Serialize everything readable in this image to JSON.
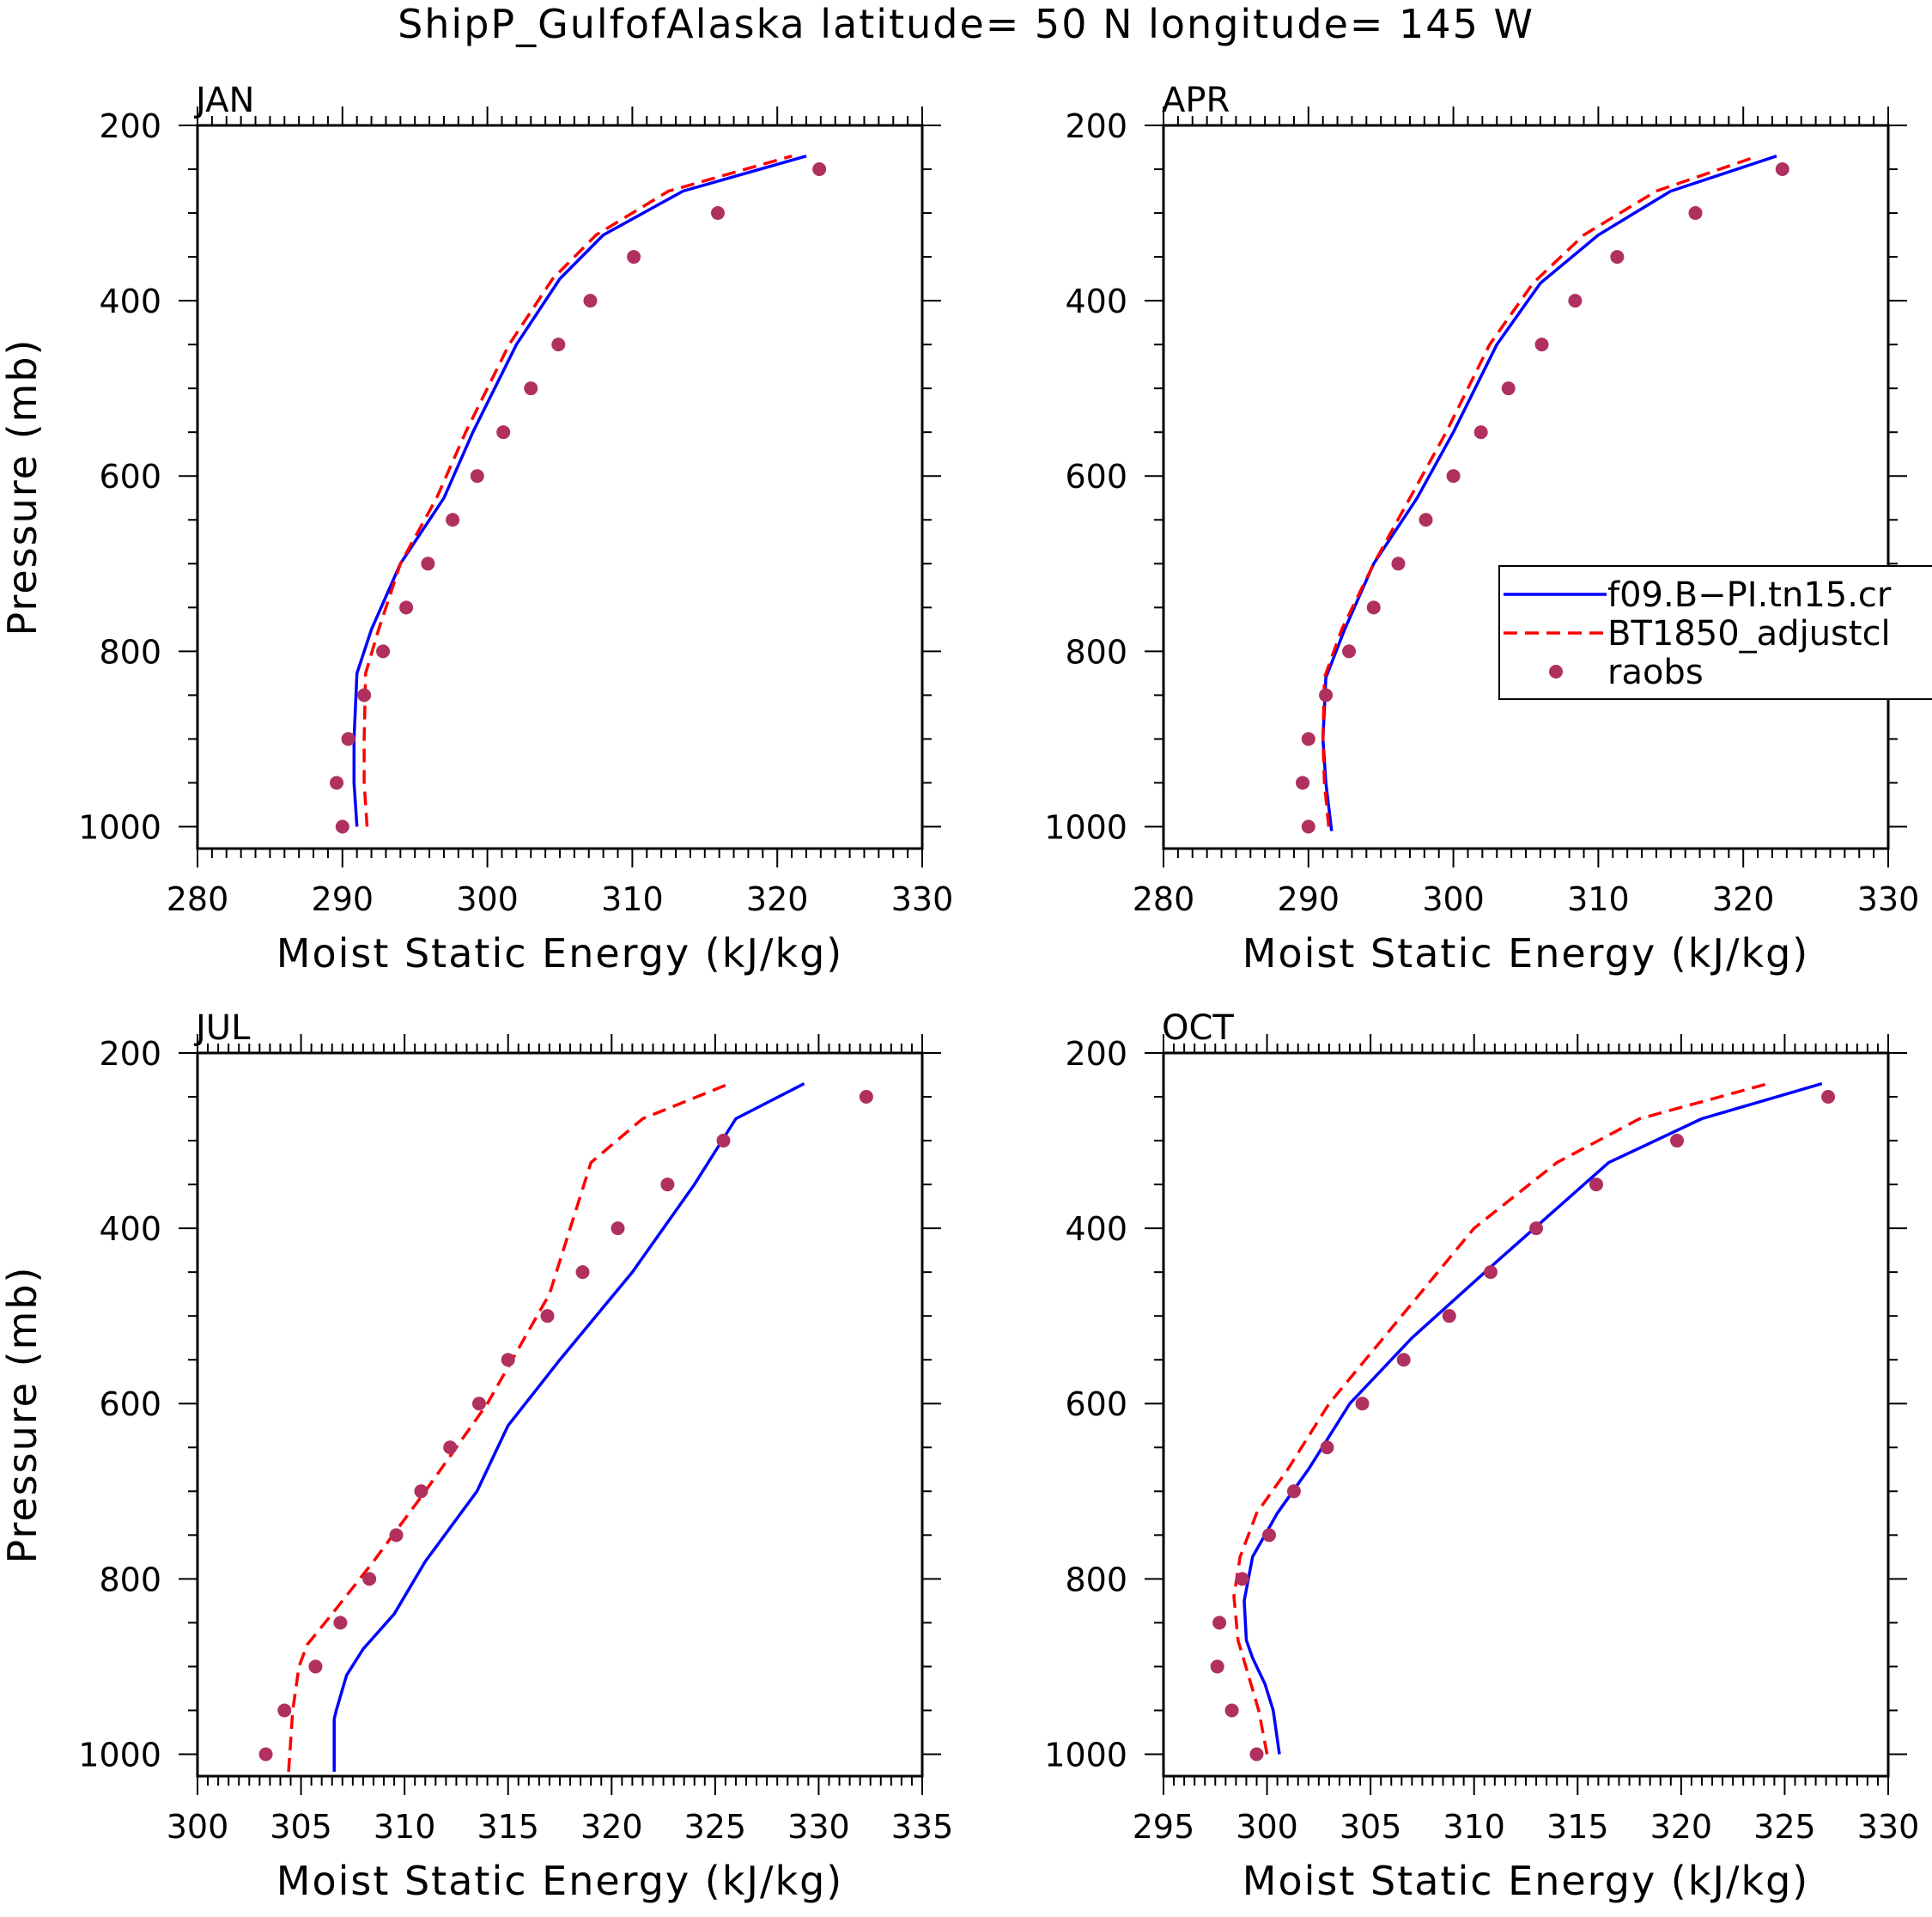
{
  "figure": {
    "title": "ShipP_GulfofAlaska  latitude= 50 N longitude= 145 W"
  },
  "legend": {
    "panel": 1,
    "entries": [
      {
        "label": "f09.B−PI.tn15.cr",
        "style": "solid-line",
        "color": "#0000ff"
      },
      {
        "label": "BT1850_adjustcl",
        "style": "dashed-line",
        "color": "#ff0000"
      },
      {
        "label": "raobs",
        "style": "dot",
        "color": "#b03060"
      }
    ]
  },
  "chart_data": [
    {
      "type": "line",
      "title": "JAN",
      "xlabel": "Moist Static Energy (kJ/kg)",
      "ylabel": "Pressure (mb)",
      "xlim": [
        280,
        330
      ],
      "ylim": [
        1025,
        200
      ],
      "xticks": [
        280,
        290,
        300,
        310,
        320,
        330
      ],
      "yticks": [
        200,
        400,
        600,
        800,
        1000
      ],
      "series": [
        {
          "name": "f09.B−PI.tn15.cr",
          "color": "#0000ff",
          "style": "solid",
          "x": [
            291.0,
            290.8,
            290.8,
            291.0,
            292.0,
            294.0,
            297.0,
            299.0,
            302.0,
            305.0,
            308.0,
            313.5,
            322.0
          ],
          "y": [
            1000,
            950,
            900,
            825,
            775,
            700,
            625,
            550,
            450,
            375,
            325,
            275,
            235
          ]
        },
        {
          "name": "BT1850_adjustcl",
          "color": "#ff0000",
          "style": "dashed",
          "x": [
            291.7,
            291.5,
            291.5,
            291.6,
            292.5,
            294.0,
            296.5,
            298.5,
            301.5,
            304.5,
            307.5,
            312.5,
            321.0
          ],
          "y": [
            1000,
            950,
            900,
            825,
            775,
            700,
            625,
            550,
            450,
            375,
            325,
            275,
            235
          ]
        },
        {
          "name": "raobs",
          "color": "#b03060",
          "style": "dot",
          "x": [
            290.0,
            289.6,
            290.4,
            291.5,
            292.8,
            294.4,
            295.9,
            297.6,
            299.3,
            301.1,
            303.0,
            304.9,
            307.1,
            310.1,
            315.9,
            322.9
          ],
          "y": [
            1000,
            950,
            900,
            850,
            800,
            750,
            700,
            650,
            600,
            550,
            500,
            450,
            400,
            350,
            300,
            250
          ]
        }
      ]
    },
    {
      "type": "line",
      "title": "APR",
      "xlabel": "Moist Static Energy (kJ/kg)",
      "ylabel": "",
      "xlim": [
        280,
        330
      ],
      "ylim": [
        1025,
        200
      ],
      "xticks": [
        280,
        290,
        300,
        310,
        320,
        330
      ],
      "yticks": [
        200,
        400,
        600,
        800,
        1000
      ],
      "series": [
        {
          "name": "f09.B−PI.tn15.cr",
          "color": "#0000ff",
          "style": "solid",
          "x": [
            291.6,
            291.2,
            291.0,
            291.2,
            292.5,
            294.5,
            297.5,
            300.0,
            303.0,
            306.0,
            310.0,
            315.0,
            322.3
          ],
          "y": [
            1005,
            950,
            900,
            830,
            775,
            700,
            625,
            550,
            450,
            380,
            325,
            275,
            235
          ]
        },
        {
          "name": "BT1850_adjustcl",
          "color": "#ff0000",
          "style": "dashed",
          "x": [
            291.4,
            291.1,
            291.0,
            291.1,
            292.3,
            294.5,
            297.0,
            299.5,
            302.5,
            305.5,
            309.0,
            314.0,
            321.0
          ],
          "y": [
            1000,
            950,
            900,
            830,
            775,
            700,
            625,
            550,
            450,
            380,
            325,
            275,
            235
          ]
        },
        {
          "name": "raobs",
          "color": "#b03060",
          "style": "dot",
          "x": [
            290.0,
            289.6,
            290.0,
            291.2,
            292.8,
            294.5,
            296.2,
            298.1,
            300.0,
            301.9,
            303.8,
            306.1,
            308.4,
            311.3,
            316.7,
            322.7
          ],
          "y": [
            1000,
            950,
            900,
            850,
            800,
            750,
            700,
            650,
            600,
            550,
            500,
            450,
            400,
            350,
            300,
            250
          ]
        }
      ]
    },
    {
      "type": "line",
      "title": "JUL",
      "xlabel": "Moist Static Energy (kJ/kg)",
      "ylabel": "Pressure (mb)",
      "xlim": [
        300,
        335
      ],
      "ylim": [
        1025,
        200
      ],
      "xticks": [
        300,
        305,
        310,
        315,
        320,
        325,
        330,
        335
      ],
      "yticks": [
        200,
        400,
        600,
        800,
        1000
      ],
      "series": [
        {
          "name": "f09.B−PI.tn15.cr",
          "color": "#0000ff",
          "style": "solid",
          "x": [
            306.6,
            306.6,
            306.7,
            307.2,
            308.0,
            309.5,
            311.0,
            313.5,
            315.0,
            317.5,
            321.0,
            324.0,
            326.0,
            329.3
          ],
          "y": [
            1020,
            960,
            950,
            910,
            880,
            840,
            780,
            700,
            625,
            550,
            450,
            350,
            275,
            235
          ]
        },
        {
          "name": "BT1850_adjustcl",
          "color": "#ff0000",
          "style": "dashed",
          "x": [
            304.4,
            304.6,
            304.9,
            305.3,
            306.5,
            308.5,
            311.0,
            314.0,
            317.0,
            319.0,
            321.5,
            325.7
          ],
          "y": [
            1020,
            950,
            900,
            875,
            840,
            780,
            700,
            600,
            475,
            325,
            275,
            235
          ]
        },
        {
          "name": "raobs",
          "color": "#b03060",
          "style": "dot",
          "x": [
            303.3,
            304.2,
            305.7,
            306.9,
            308.3,
            309.6,
            310.8,
            312.2,
            313.6,
            315.0,
            316.9,
            318.6,
            320.3,
            322.7,
            325.4,
            332.3
          ],
          "y": [
            1000,
            950,
            900,
            850,
            800,
            750,
            700,
            650,
            600,
            550,
            500,
            450,
            400,
            350,
            300,
            250
          ]
        }
      ]
    },
    {
      "type": "line",
      "title": "OCT",
      "xlabel": "Moist Static Energy (kJ/kg)",
      "ylabel": "",
      "xlim": [
        295,
        330
      ],
      "ylim": [
        1025,
        200
      ],
      "xticks": [
        295,
        300,
        305,
        310,
        315,
        320,
        325,
        330
      ],
      "yticks": [
        200,
        400,
        600,
        800,
        1000
      ],
      "series": [
        {
          "name": "f09.B−PI.tn15.cr",
          "color": "#0000ff",
          "style": "solid",
          "x": [
            300.6,
            300.3,
            299.9,
            299.3,
            299.0,
            298.9,
            299.3,
            300.5,
            302.0,
            304.0,
            307.0,
            311.0,
            316.5,
            321.0,
            326.8
          ],
          "y": [
            1000,
            950,
            920,
            890,
            870,
            825,
            775,
            725,
            675,
            600,
            525,
            440,
            325,
            275,
            235
          ]
        },
        {
          "name": "BT1850_adjustcl",
          "color": "#ff0000",
          "style": "dashed",
          "x": [
            300.0,
            299.6,
            299.1,
            298.6,
            298.4,
            298.7,
            299.5,
            301.0,
            303.0,
            306.5,
            310.0,
            314.0,
            318.0,
            324.2
          ],
          "y": [
            1000,
            950,
            910,
            870,
            820,
            775,
            725,
            675,
            600,
            500,
            400,
            325,
            275,
            235
          ]
        },
        {
          "name": "raobs",
          "color": "#b03060",
          "style": "dot",
          "x": [
            299.5,
            298.3,
            297.6,
            297.7,
            298.8,
            300.1,
            301.3,
            302.9,
            304.6,
            306.6,
            308.8,
            310.8,
            313.0,
            315.9,
            319.8,
            327.1
          ],
          "y": [
            1000,
            950,
            900,
            850,
            800,
            750,
            700,
            650,
            600,
            550,
            500,
            450,
            400,
            350,
            300,
            250
          ]
        }
      ]
    }
  ]
}
